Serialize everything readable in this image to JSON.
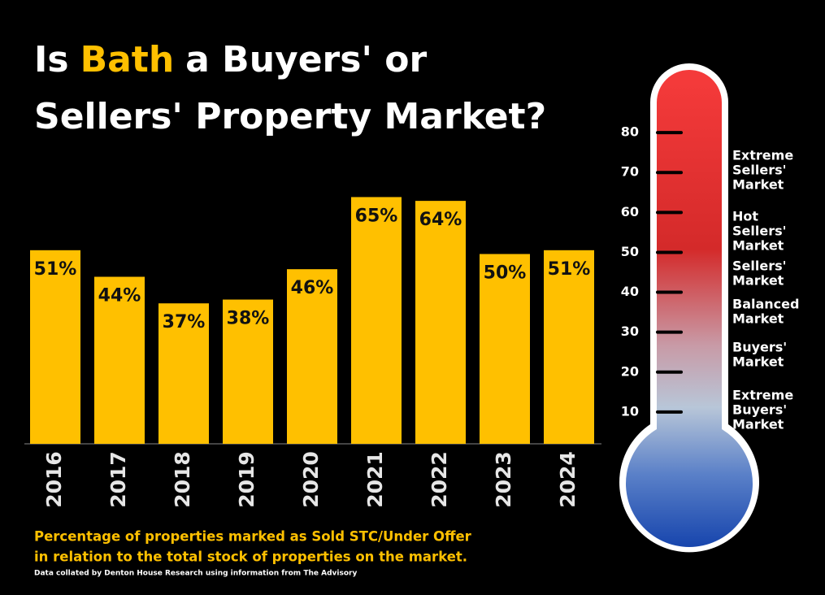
{
  "chart_data": [
    {
      "type": "bar",
      "title": [
        "Is",
        "Bath",
        "a Buyers' or",
        "Sellers' Property Market?"
      ],
      "title_color": "#ffffff",
      "highlight_color": "#ffc000",
      "categories": [
        "2016",
        "2017",
        "2018",
        "2019",
        "2020",
        "2021",
        "2022",
        "2023",
        "2024"
      ],
      "values": [
        51,
        44,
        37,
        38,
        46,
        65,
        64,
        50,
        51
      ],
      "value_labels": [
        "51%",
        "44%",
        "37%",
        "38%",
        "46%",
        "65%",
        "64%",
        "50%",
        "51%"
      ],
      "color": "#ffc000",
      "ylim": [
        0,
        100
      ],
      "caption": [
        "Percentage of properties marked as Sold STC/Under Offer",
        "in relation to the total stock of properties on the market."
      ],
      "source": "Data collated by Denton House Research using information from The Advisory"
    },
    {
      "type": "thermometer",
      "ylim": [
        0,
        90
      ],
      "yticks": [
        10,
        20,
        30,
        40,
        50,
        60,
        70,
        80
      ],
      "zones": [
        [
          "Extreme",
          "Sellers'",
          "Market"
        ],
        [
          "Hot",
          "Sellers'",
          "Market"
        ],
        [
          "Sellers'",
          "Market"
        ],
        [
          "Balanced",
          "Market"
        ],
        [
          "Buyers'",
          "Market"
        ],
        [
          "Extreme",
          "Buyers'",
          "Market"
        ]
      ]
    }
  ]
}
